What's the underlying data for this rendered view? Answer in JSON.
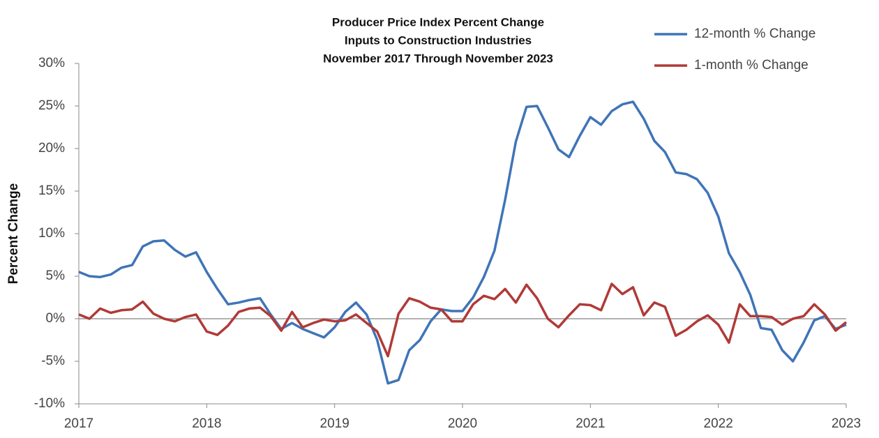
{
  "chart_data": {
    "type": "line",
    "title": [
      "Producer Price Index Percent Change",
      "Inputs to Construction Industries",
      "November 2017 Through November 2023"
    ],
    "y_label": "Percent Change",
    "x": [
      2017,
      2017.083,
      2017.167,
      2017.25,
      2017.333,
      2017.417,
      2017.5,
      2017.583,
      2017.667,
      2017.75,
      2017.833,
      2017.917,
      2018,
      2018.083,
      2018.167,
      2018.25,
      2018.333,
      2018.417,
      2018.5,
      2018.583,
      2018.667,
      2018.75,
      2018.833,
      2018.917,
      2019,
      2019.083,
      2019.167,
      2019.25,
      2019.333,
      2019.417,
      2019.5,
      2019.583,
      2019.667,
      2019.75,
      2019.833,
      2019.917,
      2020,
      2020.083,
      2020.167,
      2020.25,
      2020.333,
      2020.417,
      2020.5,
      2020.583,
      2020.667,
      2020.75,
      2020.833,
      2020.917,
      2021,
      2021.083,
      2021.167,
      2021.25,
      2021.333,
      2021.417,
      2021.5,
      2021.583,
      2021.667,
      2021.75,
      2021.833,
      2021.917,
      2022,
      2022.083,
      2022.167,
      2022.25,
      2022.333,
      2022.417,
      2022.5,
      2022.583,
      2022.667,
      2022.75,
      2022.833,
      2022.917,
      2023
    ],
    "series": [
      {
        "name": "12-month % Change",
        "color": "#3f74b8",
        "values": [
          5.5,
          5.0,
          4.9,
          5.2,
          6.0,
          6.3,
          8.5,
          9.1,
          9.2,
          8.1,
          7.3,
          7.8,
          5.5,
          3.5,
          1.7,
          1.9,
          2.2,
          2.4,
          0.5,
          -1.2,
          -0.5,
          -1.2,
          -1.7,
          -2.2,
          -1.0,
          0.8,
          1.9,
          0.5,
          -2.5,
          -7.6,
          -7.2,
          -3.7,
          -2.5,
          -0.3,
          1.1,
          0.9,
          0.9,
          2.5,
          4.9,
          8.0,
          14.0,
          20.8,
          24.9,
          25.0,
          22.5,
          19.9,
          19.0,
          21.5,
          23.7,
          22.8,
          24.4,
          25.2,
          25.5,
          23.5,
          20.9,
          19.6,
          17.2,
          17.0,
          16.4,
          14.8,
          12.0,
          7.7,
          5.5,
          2.8,
          -1.1,
          -1.3,
          -3.7,
          -5.0,
          -2.8,
          -0.2,
          0.3,
          -1.2,
          -0.7
        ]
      },
      {
        "name": "1-month % Change",
        "color": "#b03a37",
        "values": [
          0.5,
          0.0,
          1.2,
          0.7,
          1.0,
          1.1,
          2.0,
          0.6,
          0.0,
          -0.3,
          0.2,
          0.5,
          -1.5,
          -1.9,
          -0.8,
          0.8,
          1.2,
          1.3,
          0.3,
          -1.4,
          0.8,
          -1.0,
          -0.5,
          -0.1,
          -0.3,
          -0.2,
          0.5,
          -0.5,
          -1.5,
          -4.4,
          0.6,
          2.4,
          2.0,
          1.3,
          1.1,
          -0.3,
          -0.3,
          1.7,
          2.7,
          2.3,
          3.5,
          1.9,
          4.0,
          2.4,
          0.0,
          -1.0,
          0.4,
          1.7,
          1.6,
          1.0,
          4.1,
          2.9,
          3.7,
          0.4,
          1.9,
          1.4,
          -2.0,
          -1.3,
          -0.3,
          0.4,
          -0.7,
          -2.8,
          1.7,
          0.3,
          0.3,
          0.2,
          -0.7,
          0.0,
          0.3,
          1.7,
          0.5,
          -1.4,
          -0.4
        ]
      }
    ],
    "xlim": [
      2017,
      2023
    ],
    "xticks": [
      2017,
      2018,
      2019,
      2020,
      2021,
      2022,
      2023
    ],
    "ylim": [
      -10,
      30
    ],
    "yticks": [
      {
        "value": -10,
        "label": "-10%"
      },
      {
        "value": -5,
        "label": "-5%"
      },
      {
        "value": 0,
        "label": "0%"
      },
      {
        "value": 5,
        "label": "5%"
      },
      {
        "value": 10,
        "label": "10%"
      },
      {
        "value": 15,
        "label": "15%"
      },
      {
        "value": 20,
        "label": "20%"
      },
      {
        "value": 25,
        "label": "25%"
      },
      {
        "value": 30,
        "label": "30%"
      }
    ],
    "legend": "top-right"
  }
}
